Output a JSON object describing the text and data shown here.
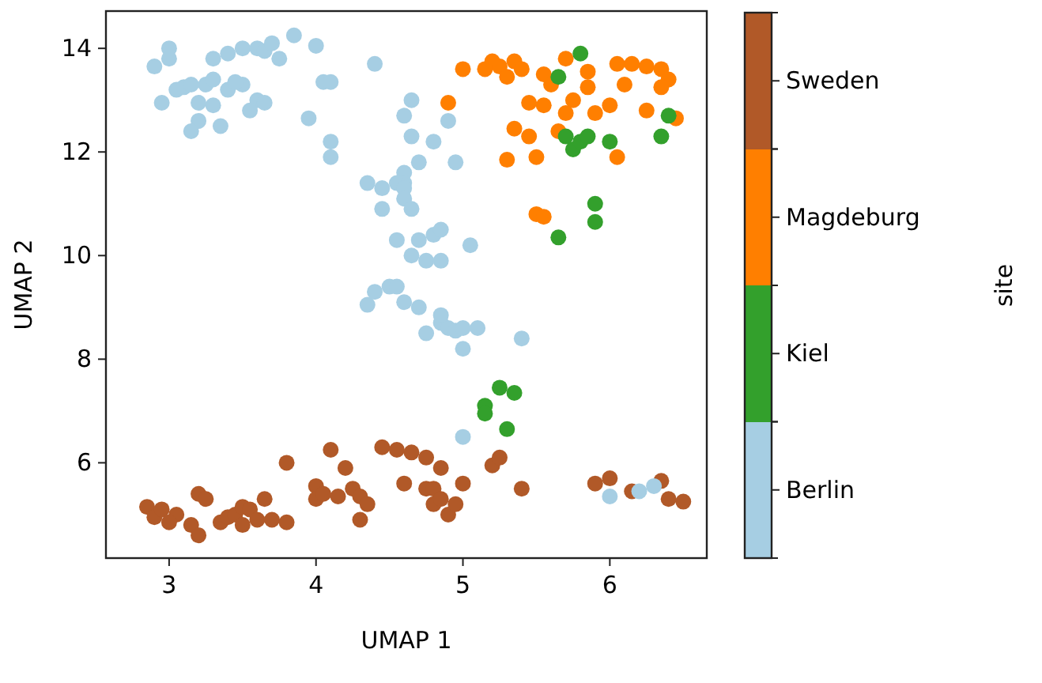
{
  "chart_data": {
    "type": "scatter",
    "xlabel": "UMAP 1",
    "ylabel": "UMAP 2",
    "clabel": "site",
    "xlim": [
      2.57,
      6.66
    ],
    "ylim": [
      4.16,
      14.72
    ],
    "xticks": [
      3,
      4,
      5,
      6
    ],
    "yticks": [
      6,
      8,
      10,
      12,
      14
    ],
    "grid": false,
    "legend": "right",
    "marker": "circle",
    "series": [
      {
        "name": "Berlin",
        "color": "#a6cee3",
        "x": [
          2.9,
          3.0,
          3.0,
          3.05,
          3.1,
          2.95,
          3.15,
          3.2,
          3.15,
          3.2,
          3.25,
          3.3,
          3.3,
          3.35,
          3.3,
          3.4,
          3.5,
          3.6,
          3.65,
          3.7,
          3.75,
          3.6,
          3.65,
          3.4,
          3.5,
          3.55,
          3.45,
          3.85,
          4.0,
          3.95,
          4.05,
          4.1,
          4.1,
          4.1,
          4.4,
          4.6,
          4.65,
          4.65,
          4.7,
          4.6,
          4.6,
          4.8,
          4.9,
          4.35,
          4.45,
          4.55,
          4.6,
          4.6,
          4.65,
          4.45,
          4.55,
          4.7,
          4.8,
          4.85,
          4.65,
          4.75,
          4.85,
          4.95,
          5.05,
          4.4,
          4.35,
          4.5,
          4.55,
          4.6,
          4.7,
          4.75,
          4.85,
          4.9,
          4.95,
          4.85,
          5.0,
          5.1,
          5.0,
          5.4,
          5.0,
          6.0,
          6.2,
          6.3
        ],
        "values": [
          13.65,
          14.0,
          13.8,
          13.2,
          13.25,
          12.95,
          13.3,
          12.6,
          12.4,
          12.95,
          13.3,
          13.4,
          12.9,
          12.5,
          13.8,
          13.9,
          14.0,
          14.0,
          13.95,
          14.1,
          13.8,
          13.0,
          12.95,
          13.2,
          13.3,
          12.8,
          13.35,
          14.25,
          14.05,
          12.65,
          13.35,
          13.35,
          12.2,
          11.9,
          13.7,
          12.7,
          13.0,
          12.3,
          11.8,
          11.6,
          11.4,
          12.2,
          12.6,
          11.4,
          11.3,
          11.4,
          11.3,
          11.1,
          10.9,
          10.9,
          10.3,
          10.3,
          10.4,
          10.5,
          10.0,
          9.9,
          9.9,
          11.8,
          10.2,
          9.3,
          9.05,
          9.4,
          9.4,
          9.1,
          9.0,
          8.5,
          8.7,
          8.6,
          8.55,
          8.85,
          8.6,
          8.6,
          8.2,
          8.4,
          6.5,
          5.35,
          5.45,
          5.55
        ]
      },
      {
        "name": "Kiel",
        "color": "#33a02c",
        "x": [
          5.8,
          5.65,
          5.7,
          5.75,
          5.8,
          5.85,
          6.0,
          6.4,
          6.35,
          5.9,
          5.9,
          5.65,
          5.25,
          5.35,
          5.15,
          5.15,
          5.3
        ],
        "values": [
          13.9,
          13.45,
          12.3,
          12.05,
          12.2,
          12.3,
          12.2,
          12.7,
          12.3,
          11.0,
          10.65,
          10.35,
          7.45,
          7.35,
          7.1,
          6.95,
          6.65
        ]
      },
      {
        "name": "Magdeburg",
        "color": "#ff7f00",
        "x": [
          5.0,
          5.15,
          5.2,
          5.25,
          5.35,
          5.4,
          5.3,
          5.55,
          5.7,
          5.85,
          5.75,
          5.55,
          5.7,
          5.9,
          5.45,
          5.6,
          5.85,
          6.05,
          6.15,
          6.25,
          6.35,
          6.4,
          6.1,
          6.35,
          6.25,
          6.45,
          6.0,
          5.35,
          5.3,
          5.65,
          6.05,
          5.5,
          5.5,
          5.55,
          5.45,
          4.9
        ],
        "values": [
          13.6,
          13.6,
          13.75,
          13.65,
          13.75,
          13.6,
          13.45,
          13.5,
          13.8,
          13.55,
          13.0,
          12.9,
          12.75,
          12.75,
          12.95,
          13.3,
          13.25,
          13.7,
          13.7,
          13.65,
          13.6,
          13.4,
          13.3,
          13.25,
          12.8,
          12.65,
          12.9,
          12.45,
          11.85,
          12.4,
          11.9,
          11.9,
          10.8,
          10.75,
          12.3,
          12.95
        ]
      },
      {
        "name": "Sweden",
        "color": "#b15928",
        "x": [
          2.85,
          2.9,
          2.95,
          3.05,
          3.0,
          3.15,
          3.2,
          3.25,
          3.2,
          3.35,
          3.4,
          3.45,
          3.5,
          3.55,
          3.5,
          3.6,
          3.65,
          3.7,
          3.8,
          3.8,
          4.0,
          4.0,
          4.05,
          4.1,
          4.15,
          4.2,
          4.25,
          4.3,
          4.3,
          4.35,
          4.45,
          4.55,
          4.65,
          4.6,
          4.75,
          4.8,
          4.8,
          4.85,
          4.75,
          4.85,
          4.9,
          4.95,
          5.0,
          5.2,
          5.25,
          5.4,
          5.9,
          6.0,
          6.15,
          6.35,
          6.4,
          6.5
        ],
        "values": [
          5.15,
          4.95,
          5.1,
          5.0,
          4.85,
          4.8,
          5.4,
          5.3,
          4.6,
          4.85,
          4.95,
          5.0,
          5.15,
          5.1,
          4.8,
          4.9,
          5.3,
          4.9,
          6.0,
          4.85,
          5.55,
          5.3,
          5.4,
          6.25,
          5.35,
          5.9,
          5.5,
          5.35,
          4.9,
          5.2,
          6.3,
          6.25,
          6.2,
          5.6,
          5.5,
          5.5,
          5.2,
          5.3,
          6.1,
          5.9,
          5.0,
          5.2,
          5.6,
          5.95,
          6.1,
          5.5,
          5.6,
          5.7,
          5.45,
          5.65,
          5.3,
          5.25
        ]
      }
    ]
  }
}
